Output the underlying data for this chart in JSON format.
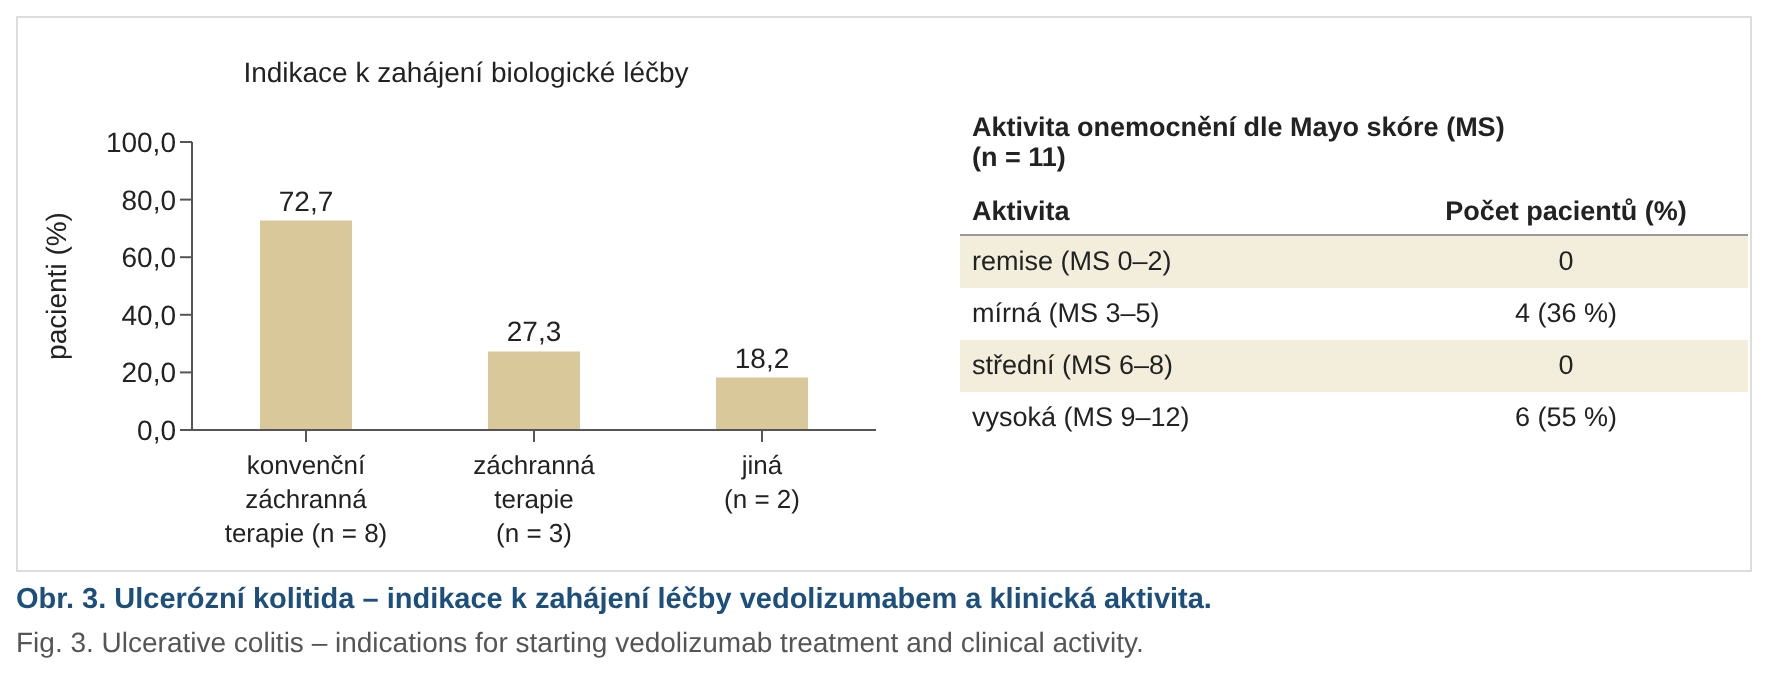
{
  "chart_data": [
    {
      "type": "bar",
      "title": "Indikace k zahájení biologické léčby",
      "ylabel": "pacienti (%)",
      "categories": [
        "konvenční\nzáchranná\nterapie (n = 8)",
        "záchranná\nterapie\n(n = 3)",
        "jiná\n(n = 2)"
      ],
      "values": [
        72.7,
        27.3,
        18.2
      ],
      "value_labels": [
        "72,7",
        "27,3",
        "18,2"
      ],
      "color": "#d9c99a",
      "ylim": [
        0,
        100
      ],
      "yticks": [
        {
          "value": 0,
          "label": "0,0"
        },
        {
          "value": 20,
          "label": "20,0"
        },
        {
          "value": 40,
          "label": "40,0"
        },
        {
          "value": 60,
          "label": "60,0"
        },
        {
          "value": 80,
          "label": "80,0"
        },
        {
          "value": 100,
          "label": "100,0"
        }
      ],
      "annotations": [
        "Obr. 3. Ulcerózní kolitida – indikace k zahájení léčby vedolizumabem a klinická aktivita.",
        "Fig. 3. Ulcerative colitis – indications for starting vedolizumab treatment and clinical activity."
      ]
    },
    {
      "type": "other",
      "title": "Aktivita onemocnění dle Mayo skóre (MS)",
      "subtitle": "(n = 11)",
      "annotations": [
        "Aktivita",
        "Počet pacientů (%)"
      ],
      "categories": [
        "remise (MS 0–2)",
        "mírná (MS 3–5)",
        "střední (MS 6–8)",
        "vysoká (MS 9–12)"
      ],
      "value_labels": [
        "0",
        "4 (36 %)",
        "0",
        "6 (55 %)"
      ],
      "color": "#f3eedc"
    }
  ]
}
